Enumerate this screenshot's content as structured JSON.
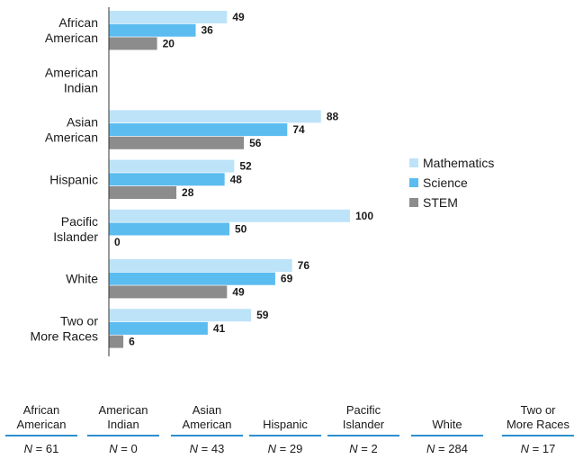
{
  "chart_data": {
    "type": "bar",
    "orientation": "horizontal",
    "categories": [
      [
        "African",
        "American"
      ],
      [
        "American",
        "Indian"
      ],
      [
        "Asian",
        "American"
      ],
      [
        "Hispanic"
      ],
      [
        "Pacific",
        "Islander"
      ],
      [
        "White"
      ],
      [
        "Two or",
        "More Races"
      ]
    ],
    "series": [
      {
        "name": "Mathematics",
        "color": "#bde3f8",
        "values": [
          49,
          null,
          88,
          52,
          100,
          76,
          59
        ]
      },
      {
        "name": "Science",
        "color": "#5bbcf0",
        "values": [
          36,
          null,
          74,
          48,
          50,
          69,
          41
        ]
      },
      {
        "name": "STEM",
        "color": "#8c8c8c",
        "values": [
          20,
          null,
          56,
          28,
          0,
          49,
          6
        ]
      }
    ],
    "xlim": [
      0,
      100
    ],
    "legend_position": "right",
    "grid": false
  },
  "table": {
    "columns": [
      {
        "label": [
          "African",
          "American"
        ],
        "n": "61"
      },
      {
        "label": [
          "American",
          "Indian"
        ],
        "n": "0"
      },
      {
        "label": [
          "Asian",
          "American"
        ],
        "n": "43"
      },
      {
        "label": [
          "Hispanic"
        ],
        "n": "29"
      },
      {
        "label": [
          "Pacific",
          "Islander"
        ],
        "n": "2"
      },
      {
        "label": [
          "White"
        ],
        "n": "284"
      },
      {
        "label": [
          "Two or",
          "More Races"
        ],
        "n": "17"
      }
    ],
    "n_prefix": "N",
    "n_equals": " = "
  }
}
